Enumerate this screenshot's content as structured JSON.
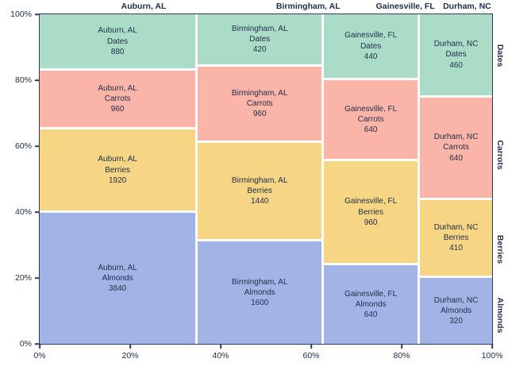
{
  "figure": {
    "background": "#ffffff",
    "text_color": "#22304a",
    "frame_color": "#2e3d57"
  },
  "chart_data": {
    "type": "bar",
    "variant": "mosaic-marimekko",
    "title": "",
    "xlabel": "",
    "ylabel": "",
    "x_tick_labels": [
      "0%",
      "20%",
      "40%",
      "60%",
      "80%",
      "100%"
    ],
    "y_tick_labels": [
      "0%",
      "20%",
      "40%",
      "60%",
      "80%",
      "100%"
    ],
    "column_headers": [
      "Auburn, AL",
      "Birmingham, AL",
      "Gainesville, FL",
      "Durham, NC"
    ],
    "right_axis_labels": [
      "Dates",
      "Carrots",
      "Berries",
      "Almonds"
    ],
    "categories_top_to_bottom": [
      "Dates",
      "Carrots",
      "Berries",
      "Almonds"
    ],
    "colors": {
      "Dates": "#abdcc7",
      "Carrots": "#fbb4a8",
      "Berries": "#f6d585",
      "Almonds": "#a2b3e5"
    },
    "columns": [
      {
        "label": "Auburn, AL",
        "total": 7600,
        "segments": [
          {
            "category": "Dates",
            "value": 880
          },
          {
            "category": "Carrots",
            "value": 960
          },
          {
            "category": "Berries",
            "value": 1920
          },
          {
            "category": "Almonds",
            "value": 3840
          }
        ]
      },
      {
        "label": "Birmingham, AL",
        "total": 4420,
        "segments": [
          {
            "category": "Dates",
            "value": 420
          },
          {
            "category": "Carrots",
            "value": 960
          },
          {
            "category": "Berries",
            "value": 1440
          },
          {
            "category": "Almonds",
            "value": 1600
          }
        ]
      },
      {
        "label": "Gainesville, FL",
        "total": 2680,
        "segments": [
          {
            "category": "Dates",
            "value": 440
          },
          {
            "category": "Carrots",
            "value": 640
          },
          {
            "category": "Berries",
            "value": 960
          },
          {
            "category": "Almonds",
            "value": 640
          }
        ]
      },
      {
        "label": "Durham, NC",
        "total": 1830,
        "segments": [
          {
            "category": "Dates",
            "value": 460
          },
          {
            "category": "Carrots",
            "value": 640
          },
          {
            "category": "Berries",
            "value": 410
          },
          {
            "category": "Almonds",
            "value": 320
          }
        ]
      }
    ]
  }
}
